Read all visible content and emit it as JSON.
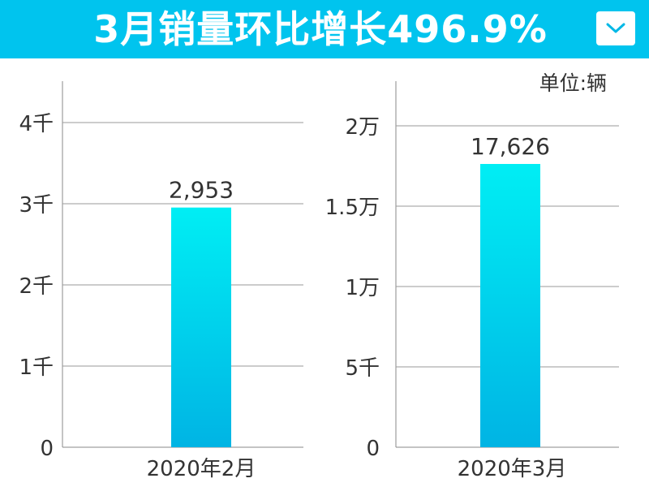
{
  "header": {
    "title": "3月销量环比增长496.9%",
    "dropdown_icon": "chevron-down-icon",
    "background_color": "#00c4ee"
  },
  "unit_label": "单位:辆",
  "chart_data": [
    {
      "type": "bar",
      "categories": [
        "2020年2月"
      ],
      "values": [
        2953
      ],
      "data_labels": [
        "2,953"
      ],
      "yticks": [
        0,
        1000,
        2000,
        3000,
        4000
      ],
      "ytick_labels": [
        "0",
        "1千",
        "2千",
        "3千",
        "4千"
      ],
      "ylim": [
        0,
        4350
      ],
      "grid": true,
      "bar_gradient": [
        "#00eef4",
        "#00b4e4"
      ]
    },
    {
      "type": "bar",
      "categories": [
        "2020年3月"
      ],
      "values": [
        17626
      ],
      "data_labels": [
        "17,626"
      ],
      "yticks": [
        0,
        5000,
        10000,
        15000,
        20000
      ],
      "ytick_labels": [
        "0",
        "5千",
        "1万",
        "1.5万",
        "2万"
      ],
      "ylim": [
        0,
        22000
      ],
      "grid": true,
      "bar_gradient": [
        "#00eef4",
        "#00b4e4"
      ]
    }
  ]
}
